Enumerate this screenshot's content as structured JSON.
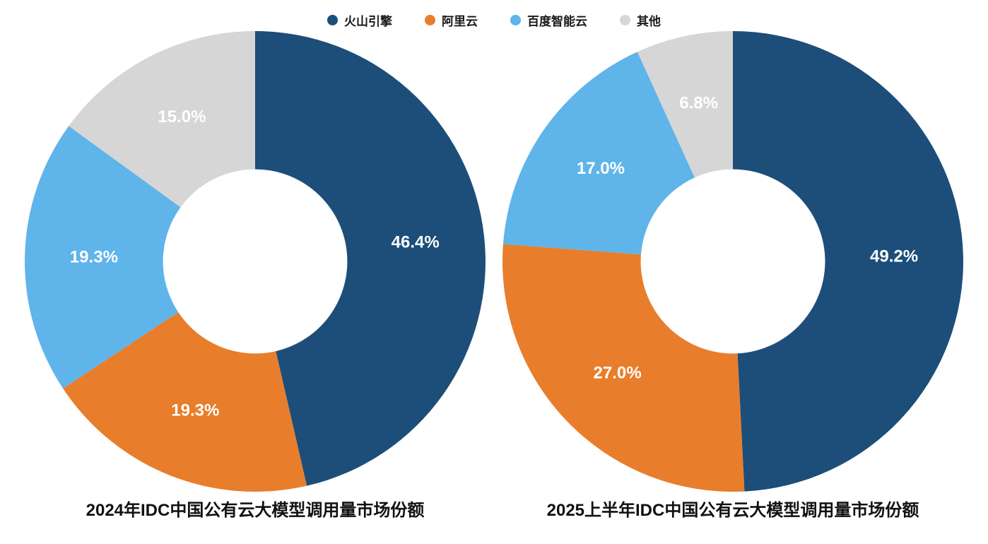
{
  "page": {
    "background": "#ffffff"
  },
  "legend": {
    "position": "top",
    "items": [
      {
        "label": "火山引擎",
        "color": "#1d4e79"
      },
      {
        "label": "阿里云",
        "color": "#e87e2b"
      },
      {
        "label": "百度智能云",
        "color": "#5fb4ea"
      },
      {
        "label": "其他",
        "color": "#d6d6d6"
      }
    ]
  },
  "chart_data": [
    {
      "type": "pie",
      "donut": true,
      "title": "2024年IDC中国公有云大模型调用量市场份额",
      "start_angle_deg": 0,
      "direction": "clockwise",
      "categories": [
        "火山引擎",
        "阿里云",
        "百度智能云",
        "其他"
      ],
      "values": [
        46.4,
        19.3,
        19.3,
        15.0
      ],
      "labels": [
        "46.4%",
        "19.3%",
        "19.3%",
        "15.0%"
      ],
      "colors": [
        "#1d4e79",
        "#e87e2b",
        "#5fb4ea",
        "#d6d6d6"
      ],
      "label_color": "#ffffff",
      "legend_position": "top"
    },
    {
      "type": "pie",
      "donut": true,
      "title": "2025上半年IDC中国公有云大模型调用量市场份额",
      "start_angle_deg": 0,
      "direction": "clockwise",
      "categories": [
        "火山引擎",
        "阿里云",
        "百度智能云",
        "其他"
      ],
      "values": [
        49.2,
        27.0,
        17.0,
        6.8
      ],
      "labels": [
        "49.2%",
        "27.0%",
        "17.0%",
        "6.8%"
      ],
      "colors": [
        "#1d4e79",
        "#e87e2b",
        "#5fb4ea",
        "#d6d6d6"
      ],
      "label_color": "#ffffff",
      "legend_position": "top"
    }
  ]
}
